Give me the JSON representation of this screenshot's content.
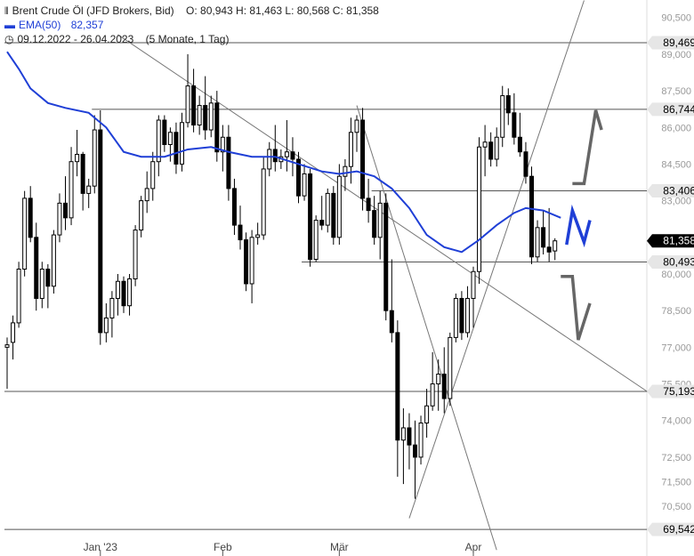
{
  "legend": {
    "instrument": "Brent Crude Öl (JFD Brokers, Bid)",
    "ohlc": "O: 80,943   H: 81,463   L: 80,568   C: 81,358",
    "ema_label": "EMA(50)",
    "ema_value": "82,357",
    "range": "09.12.2022 - 26.04.2023",
    "range_detail": "(5 Monate, 1 Tag)"
  },
  "colors": {
    "candle": "#000000",
    "ema": "#1f3fd6",
    "level": "#555555",
    "trend": "#777777",
    "projection_up": "#666666",
    "projection_down": "#666666",
    "projection_mid": "#1f3fd6"
  },
  "chart_data": {
    "type": "candlestick",
    "title": "Brent Crude Öl (JFD Brokers, Bid)",
    "ylim": [
      69.0,
      91.0
    ],
    "y_ticks": [
      {
        "label": "90,500",
        "value": 90.5
      },
      {
        "label": "89,000",
        "value": 89.0
      },
      {
        "label": "87,500",
        "value": 87.5
      },
      {
        "label": "86,000",
        "value": 86.0
      },
      {
        "label": "84,500",
        "value": 84.5
      },
      {
        "label": "83,000",
        "value": 83.0
      },
      {
        "label": "80,000",
        "value": 80.0
      },
      {
        "label": "78,500",
        "value": 78.5
      },
      {
        "label": "77,000",
        "value": 77.0
      },
      {
        "label": "75,500",
        "value": 75.5
      },
      {
        "label": "74,000",
        "value": 74.0
      },
      {
        "label": "72,500",
        "value": 72.5
      },
      {
        "label": "71,500",
        "value": 71.5
      },
      {
        "label": "70,500",
        "value": 70.5
      }
    ],
    "x_ticks": [
      {
        "label": "Jan '23",
        "index": 16
      },
      {
        "label": "Feb",
        "index": 37
      },
      {
        "label": "Mär",
        "index": 57
      },
      {
        "label": "Apr",
        "index": 80
      }
    ],
    "levels": [
      {
        "label": "89,469",
        "value": 89.469,
        "from": 0
      },
      {
        "label": "86,744",
        "value": 86.744,
        "from": 15
      },
      {
        "label": "83,406",
        "value": 83.406,
        "from": 63
      },
      {
        "label": "81,358",
        "value": 81.358,
        "from": null,
        "current": true
      },
      {
        "label": "80,493",
        "value": 80.493,
        "from": 51
      },
      {
        "label": "75,193",
        "value": 75.193,
        "from": 0
      },
      {
        "label": "69,542",
        "value": 69.542,
        "from": 0
      }
    ],
    "trendlines": [
      {
        "from": [
          19,
          89.8
        ],
        "to": [
          111,
          75.0
        ]
      },
      {
        "from": [
          60,
          86.9
        ],
        "to": [
          84,
          68.7
        ]
      },
      {
        "from": [
          69,
          70.0
        ],
        "to": [
          99,
          91.2
        ]
      }
    ],
    "projections": [
      {
        "kind": "up",
        "points": [
          [
            97,
            83.7
          ],
          [
            99,
            83.7
          ],
          [
            101,
            86.7
          ],
          [
            102,
            85.9
          ]
        ]
      },
      {
        "kind": "mid",
        "points": [
          [
            96,
            81.2
          ],
          [
            97,
            82.6
          ],
          [
            99,
            81.3
          ],
          [
            100,
            82.2
          ]
        ]
      },
      {
        "kind": "down",
        "points": [
          [
            95,
            79.9
          ],
          [
            97,
            79.9
          ],
          [
            98,
            77.3
          ],
          [
            100,
            78.8
          ]
        ]
      }
    ],
    "ema": [
      [
        0,
        89.1
      ],
      [
        2,
        88.4
      ],
      [
        4,
        87.6
      ],
      [
        7,
        87.0
      ],
      [
        10,
        86.8
      ],
      [
        14,
        86.6
      ],
      [
        17,
        86.0
      ],
      [
        20,
        85.0
      ],
      [
        23,
        84.8
      ],
      [
        27,
        84.8
      ],
      [
        31,
        85.1
      ],
      [
        35,
        85.2
      ],
      [
        38,
        85.0
      ],
      [
        42,
        84.8
      ],
      [
        46,
        84.8
      ],
      [
        50,
        84.5
      ],
      [
        54,
        84.2
      ],
      [
        57,
        84.1
      ],
      [
        60,
        84.2
      ],
      [
        63,
        84.0
      ],
      [
        66,
        83.5
      ],
      [
        69,
        82.7
      ],
      [
        72,
        81.6
      ],
      [
        75,
        81.1
      ],
      [
        78,
        80.9
      ],
      [
        81,
        81.4
      ],
      [
        84,
        82.0
      ],
      [
        87,
        82.5
      ],
      [
        89,
        82.7
      ],
      [
        92,
        82.6
      ],
      [
        95,
        82.3
      ]
    ],
    "candles": [
      {
        "o": 77.0,
        "h": 77.4,
        "l": 75.3,
        "c": 77.1
      },
      {
        "o": 77.2,
        "h": 78.3,
        "l": 76.5,
        "c": 78.0
      },
      {
        "o": 78.0,
        "h": 80.5,
        "l": 77.8,
        "c": 80.2
      },
      {
        "o": 80.2,
        "h": 83.4,
        "l": 79.9,
        "c": 83.1
      },
      {
        "o": 83.1,
        "h": 83.6,
        "l": 81.3,
        "c": 81.5
      },
      {
        "o": 81.5,
        "h": 82.1,
        "l": 78.5,
        "c": 79.0
      },
      {
        "o": 79.0,
        "h": 80.5,
        "l": 78.6,
        "c": 80.2
      },
      {
        "o": 80.2,
        "h": 80.4,
        "l": 78.6,
        "c": 79.5
      },
      {
        "o": 79.5,
        "h": 81.8,
        "l": 79.2,
        "c": 81.6
      },
      {
        "o": 81.6,
        "h": 83.3,
        "l": 81.3,
        "c": 82.9
      },
      {
        "o": 82.9,
        "h": 84.0,
        "l": 81.8,
        "c": 82.3
      },
      {
        "o": 82.3,
        "h": 85.2,
        "l": 82.0,
        "c": 84.6
      },
      {
        "o": 84.6,
        "h": 85.9,
        "l": 84.0,
        "c": 84.9
      },
      {
        "o": 84.9,
        "h": 85.0,
        "l": 82.6,
        "c": 83.3
      },
      {
        "o": 83.3,
        "h": 83.9,
        "l": 82.7,
        "c": 83.6
      },
      {
        "o": 83.6,
        "h": 86.5,
        "l": 83.3,
        "c": 85.9
      },
      {
        "o": 85.9,
        "h": 86.7,
        "l": 77.1,
        "c": 77.6
      },
      {
        "o": 77.6,
        "h": 78.8,
        "l": 77.2,
        "c": 78.2
      },
      {
        "o": 78.2,
        "h": 79.3,
        "l": 77.4,
        "c": 79.0
      },
      {
        "o": 79.0,
        "h": 80.0,
        "l": 78.3,
        "c": 79.7
      },
      {
        "o": 79.7,
        "h": 79.9,
        "l": 78.4,
        "c": 78.7
      },
      {
        "o": 78.7,
        "h": 80.0,
        "l": 78.3,
        "c": 79.8
      },
      {
        "o": 79.8,
        "h": 82.0,
        "l": 79.5,
        "c": 81.8
      },
      {
        "o": 81.8,
        "h": 83.2,
        "l": 81.5,
        "c": 83.0
      },
      {
        "o": 83.0,
        "h": 84.2,
        "l": 82.5,
        "c": 83.5
      },
      {
        "o": 83.5,
        "h": 85.0,
        "l": 83.0,
        "c": 84.6
      },
      {
        "o": 84.6,
        "h": 86.5,
        "l": 84.0,
        "c": 86.3
      },
      {
        "o": 86.3,
        "h": 86.5,
        "l": 85.0,
        "c": 85.3
      },
      {
        "o": 85.3,
        "h": 86.0,
        "l": 84.6,
        "c": 85.8
      },
      {
        "o": 85.8,
        "h": 86.2,
        "l": 84.1,
        "c": 84.5
      },
      {
        "o": 84.5,
        "h": 86.6,
        "l": 84.2,
        "c": 86.2
      },
      {
        "o": 86.2,
        "h": 89.0,
        "l": 86.0,
        "c": 87.7
      },
      {
        "o": 87.7,
        "h": 88.4,
        "l": 85.8,
        "c": 86.1
      },
      {
        "o": 86.1,
        "h": 87.3,
        "l": 85.7,
        "c": 86.9
      },
      {
        "o": 86.9,
        "h": 88.1,
        "l": 85.5,
        "c": 85.9
      },
      {
        "o": 85.9,
        "h": 87.3,
        "l": 85.6,
        "c": 87.0
      },
      {
        "o": 87.0,
        "h": 87.5,
        "l": 84.6,
        "c": 85.0
      },
      {
        "o": 85.0,
        "h": 86.1,
        "l": 84.2,
        "c": 85.6
      },
      {
        "o": 85.6,
        "h": 86.1,
        "l": 83.0,
        "c": 83.5
      },
      {
        "o": 83.5,
        "h": 83.9,
        "l": 81.6,
        "c": 82.0
      },
      {
        "o": 82.0,
        "h": 82.8,
        "l": 81.0,
        "c": 81.4
      },
      {
        "o": 81.4,
        "h": 81.7,
        "l": 79.3,
        "c": 79.6
      },
      {
        "o": 79.6,
        "h": 81.8,
        "l": 78.8,
        "c": 81.5
      },
      {
        "o": 81.5,
        "h": 82.1,
        "l": 81.2,
        "c": 81.6
      },
      {
        "o": 81.6,
        "h": 84.8,
        "l": 81.4,
        "c": 84.3
      },
      {
        "o": 84.3,
        "h": 85.4,
        "l": 84.0,
        "c": 85.1
      },
      {
        "o": 85.1,
        "h": 86.1,
        "l": 84.2,
        "c": 84.6
      },
      {
        "o": 84.6,
        "h": 85.1,
        "l": 84.3,
        "c": 84.8
      },
      {
        "o": 84.8,
        "h": 86.3,
        "l": 84.2,
        "c": 85.0
      },
      {
        "o": 85.0,
        "h": 85.6,
        "l": 84.0,
        "c": 84.7
      },
      {
        "o": 84.7,
        "h": 85.0,
        "l": 82.9,
        "c": 83.2
      },
      {
        "o": 83.2,
        "h": 84.5,
        "l": 83.0,
        "c": 84.1
      },
      {
        "o": 84.1,
        "h": 84.3,
        "l": 80.3,
        "c": 80.6
      },
      {
        "o": 80.6,
        "h": 82.4,
        "l": 80.5,
        "c": 82.2
      },
      {
        "o": 82.2,
        "h": 83.2,
        "l": 81.8,
        "c": 82.0
      },
      {
        "o": 82.0,
        "h": 83.5,
        "l": 81.7,
        "c": 83.3
      },
      {
        "o": 83.3,
        "h": 83.6,
        "l": 81.2,
        "c": 81.5
      },
      {
        "o": 81.5,
        "h": 84.5,
        "l": 81.2,
        "c": 84.0
      },
      {
        "o": 84.0,
        "h": 84.7,
        "l": 83.4,
        "c": 84.4
      },
      {
        "o": 84.4,
        "h": 86.4,
        "l": 83.7,
        "c": 85.8
      },
      {
        "o": 85.8,
        "h": 86.5,
        "l": 85.0,
        "c": 86.3
      },
      {
        "o": 86.3,
        "h": 86.8,
        "l": 82.6,
        "c": 83.1
      },
      {
        "o": 83.1,
        "h": 83.9,
        "l": 82.1,
        "c": 82.6
      },
      {
        "o": 82.6,
        "h": 83.2,
        "l": 81.2,
        "c": 81.5
      },
      {
        "o": 81.5,
        "h": 83.4,
        "l": 80.6,
        "c": 82.9
      },
      {
        "o": 82.9,
        "h": 83.3,
        "l": 78.1,
        "c": 78.5
      },
      {
        "o": 78.5,
        "h": 80.6,
        "l": 77.2,
        "c": 77.6
      },
      {
        "o": 77.6,
        "h": 78.1,
        "l": 71.7,
        "c": 73.2
      },
      {
        "o": 73.2,
        "h": 74.5,
        "l": 71.4,
        "c": 73.7
      },
      {
        "o": 73.7,
        "h": 74.3,
        "l": 72.0,
        "c": 73.0
      },
      {
        "o": 73.0,
        "h": 74.0,
        "l": 70.8,
        "c": 72.5
      },
      {
        "o": 72.5,
        "h": 74.2,
        "l": 72.2,
        "c": 73.9
      },
      {
        "o": 73.9,
        "h": 75.3,
        "l": 73.3,
        "c": 74.6
      },
      {
        "o": 74.6,
        "h": 76.8,
        "l": 74.4,
        "c": 75.5
      },
      {
        "o": 75.5,
        "h": 76.5,
        "l": 74.4,
        "c": 75.9
      },
      {
        "o": 75.9,
        "h": 77.0,
        "l": 74.3,
        "c": 74.9
      },
      {
        "o": 74.9,
        "h": 77.6,
        "l": 74.6,
        "c": 77.4
      },
      {
        "o": 77.4,
        "h": 79.2,
        "l": 77.2,
        "c": 79.0
      },
      {
        "o": 79.0,
        "h": 79.3,
        "l": 77.3,
        "c": 77.6
      },
      {
        "o": 77.6,
        "h": 79.5,
        "l": 77.4,
        "c": 79.0
      },
      {
        "o": 79.0,
        "h": 80.3,
        "l": 77.8,
        "c": 80.1
      },
      {
        "o": 80.1,
        "h": 85.6,
        "l": 79.6,
        "c": 85.2
      },
      {
        "o": 85.2,
        "h": 86.1,
        "l": 84.0,
        "c": 85.4
      },
      {
        "o": 85.4,
        "h": 85.8,
        "l": 84.4,
        "c": 84.7
      },
      {
        "o": 84.7,
        "h": 86.0,
        "l": 84.4,
        "c": 85.6
      },
      {
        "o": 85.6,
        "h": 87.7,
        "l": 85.2,
        "c": 87.3
      },
      {
        "o": 87.3,
        "h": 87.6,
        "l": 86.1,
        "c": 86.6
      },
      {
        "o": 86.6,
        "h": 87.4,
        "l": 85.3,
        "c": 85.6
      },
      {
        "o": 85.6,
        "h": 86.6,
        "l": 84.8,
        "c": 85.0
      },
      {
        "o": 85.0,
        "h": 85.4,
        "l": 83.7,
        "c": 84.0
      },
      {
        "o": 84.0,
        "h": 84.4,
        "l": 80.4,
        "c": 80.7
      },
      {
        "o": 80.7,
        "h": 82.2,
        "l": 80.5,
        "c": 81.9
      },
      {
        "o": 81.9,
        "h": 82.6,
        "l": 80.8,
        "c": 81.1
      },
      {
        "o": 81.1,
        "h": 82.7,
        "l": 80.5,
        "c": 80.9
      },
      {
        "o": 80.943,
        "h": 81.463,
        "l": 80.568,
        "c": 81.358
      }
    ]
  }
}
